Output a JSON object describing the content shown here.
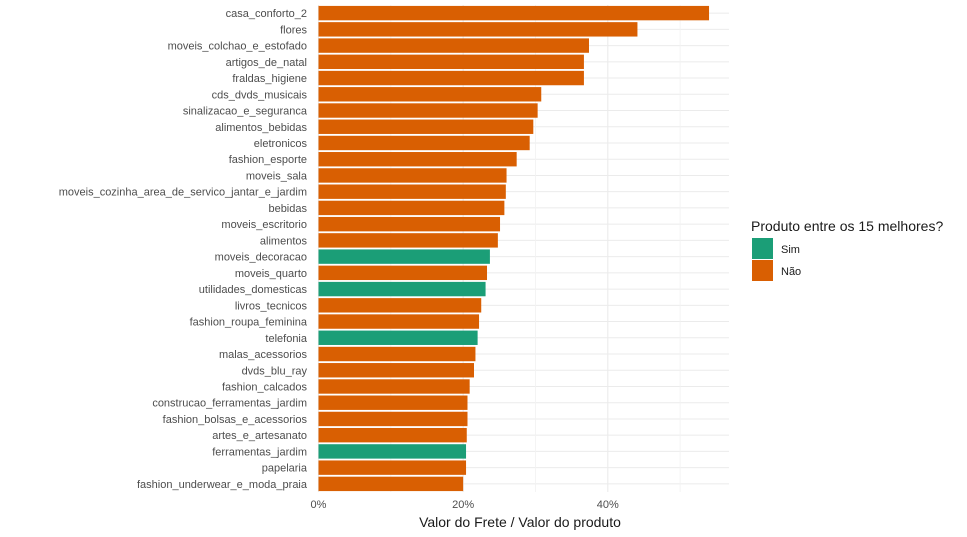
{
  "chart_data": {
    "type": "bar",
    "orientation": "horizontal",
    "xlabel": "Valor do Frete / Valor do produto",
    "ylabel": "",
    "xlim": [
      -0.0007,
      0.5676
    ],
    "x_ticks": [
      0,
      0.2,
      0.4
    ],
    "x_tick_labels": [
      "0%",
      "20%",
      "40%"
    ],
    "grid": true,
    "legend": {
      "title": "Produto entre os 15 melhores?",
      "position": "right",
      "entries": [
        {
          "label": "Sim",
          "color": "#1B9E77"
        },
        {
          "label": "Não",
          "color": "#D95F02"
        }
      ]
    },
    "categories": [
      "casa_conforto_2",
      "flores",
      "moveis_colchao_e_estofado",
      "artigos_de_natal",
      "fraldas_higiene",
      "cds_dvds_musicais",
      "sinalizacao_e_seguranca",
      "alimentos_bebidas",
      "eletronicos",
      "fashion_esporte",
      "moveis_sala",
      "moveis_cozinha_area_de_servico_jantar_e_jardim",
      "bebidas",
      "moveis_escritorio",
      "alimentos",
      "moveis_decoracao",
      "moveis_quarto",
      "utilidades_domesticas",
      "livros_tecnicos",
      "fashion_roupa_feminina",
      "telefonia",
      "malas_acessorios",
      "dvds_blu_ray",
      "fashion_calcados",
      "construcao_ferramentas_jardim",
      "fashion_bolsas_e_acessorios",
      "artes_e_artesanato",
      "ferramentas_jardim",
      "papelaria",
      "fashion_underwear_e_moda_praia"
    ],
    "values": [
      0.54,
      0.441,
      0.374,
      0.367,
      0.367,
      0.308,
      0.303,
      0.297,
      0.292,
      0.274,
      0.26,
      0.259,
      0.257,
      0.251,
      0.248,
      0.237,
      0.233,
      0.231,
      0.225,
      0.222,
      0.22,
      0.217,
      0.215,
      0.209,
      0.206,
      0.206,
      0.205,
      0.204,
      0.204,
      0.2
    ],
    "top15": [
      false,
      false,
      false,
      false,
      false,
      false,
      false,
      false,
      false,
      false,
      false,
      false,
      false,
      false,
      false,
      true,
      false,
      true,
      false,
      false,
      true,
      false,
      false,
      false,
      false,
      false,
      false,
      true,
      false,
      false
    ]
  }
}
